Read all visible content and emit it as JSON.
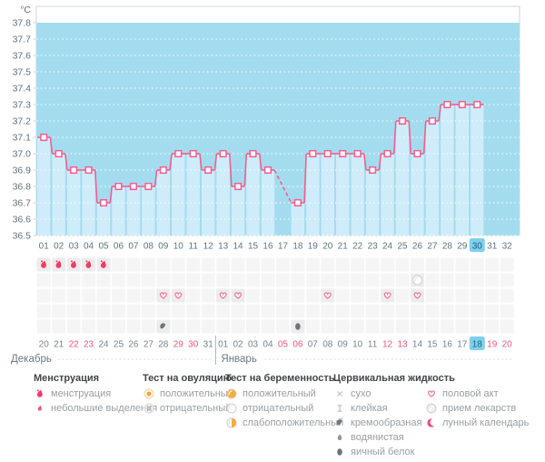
{
  "unit_label": "°C",
  "colors": {
    "plot_background": "#a4dcef",
    "day_bar_fill": "#cfecfa",
    "temperature_line": "#f1608e",
    "grid_dots": "#ffffff",
    "axis_text": "#62717b",
    "cycle_day_text": "#5b7584",
    "date_text": "#75838c",
    "weekend_date_text": "#f0557c",
    "today_highlight_bg": "#7fd0ee",
    "today_highlight_text": "#20617c",
    "month_text": "#6b7a83",
    "icon_cell_bg": "#ececec",
    "empty_cell_bg": "#f5f5f6",
    "menstruation_red": "#f23b6b",
    "test_orange": "#f3ab42",
    "dark_icon_gray": "#6d757b",
    "light_icon_gray": "#bcc2c6",
    "heart_pink": "#f0779c",
    "moon_pink": "#f2447e"
  },
  "chart_data": {
    "type": "line",
    "title": "",
    "xlabel": "",
    "ylabel": "°C",
    "ylim": [
      36.5,
      37.8
    ],
    "ytick_step": 0.1,
    "grid": "dotted horizontal white lines on blue field",
    "days": [
      "01",
      "02",
      "03",
      "04",
      "05",
      "06",
      "07",
      "08",
      "09",
      "10",
      "11",
      "12",
      "13",
      "14",
      "15",
      "16",
      "17",
      "18",
      "19",
      "20",
      "21",
      "22",
      "23",
      "24",
      "25",
      "26",
      "27",
      "28",
      "29",
      "30",
      "31",
      "32"
    ],
    "temperatures": [
      37.1,
      37.0,
      36.9,
      36.9,
      36.7,
      36.8,
      36.8,
      36.8,
      36.9,
      37.0,
      37.0,
      36.9,
      37.0,
      36.8,
      37.0,
      36.9,
      null,
      36.7,
      37.0,
      37.0,
      37.0,
      37.0,
      36.9,
      37.0,
      37.2,
      37.0,
      37.2,
      37.3,
      37.3,
      37.3,
      null,
      null
    ],
    "missing_day_note": "day 17 has no measurement - segment 16-18 drawn dashed",
    "highlighted_day": 30
  },
  "tracking_rows": {
    "menstruation_days": [
      1,
      2,
      3,
      4,
      5
    ],
    "pregnancy_test_negative_days": [
      26
    ],
    "intercourse_days": [
      9,
      10,
      13,
      14,
      20,
      24,
      26
    ],
    "cervical_fluid_entries": [
      {
        "day": 9,
        "type": "кремообразная"
      },
      {
        "day": 18,
        "type": "яичный белок"
      }
    ]
  },
  "calendar": {
    "months": [
      {
        "label": "Декабрь",
        "dates": [
          "20",
          "21",
          "22",
          "23",
          "24",
          "25",
          "26",
          "27",
          "28",
          "29",
          "30",
          "31"
        ],
        "weekend_dates": [
          "22",
          "23",
          "29",
          "30"
        ]
      },
      {
        "label": "Январь",
        "dates": [
          "01",
          "02",
          "03",
          "04",
          "05",
          "06",
          "07",
          "08",
          "09",
          "10",
          "11",
          "12",
          "13",
          "14",
          "15",
          "16",
          "17",
          "18",
          "19",
          "20"
        ],
        "weekend_dates": [
          "05",
          "06",
          "12",
          "13",
          "19",
          "20"
        ],
        "highlighted_date": "18"
      }
    ]
  },
  "legend": {
    "groups": [
      {
        "title": "Менструация",
        "items": [
          {
            "icon": "drop",
            "label": "менструация"
          },
          {
            "icon": "drop-small",
            "label": "небольшие выделения"
          }
        ]
      },
      {
        "title": "Тест на овуляцию",
        "items": [
          {
            "icon": "ovu-pos",
            "label": "положительный"
          },
          {
            "icon": "ovu-neg",
            "label": "отрицательный"
          }
        ]
      },
      {
        "title": "Тест на беременность",
        "items": [
          {
            "icon": "test-pos",
            "label": "положительный"
          },
          {
            "icon": "test-neg",
            "label": "отрицательный"
          },
          {
            "icon": "test-weak",
            "label": "слабоположительный"
          }
        ]
      },
      {
        "title": "Цервикальная жидкость",
        "items": [
          {
            "icon": "cross",
            "label": "сухо"
          },
          {
            "icon": "sticky",
            "label": "клейкая"
          },
          {
            "icon": "comma",
            "label": "кремообразная"
          },
          {
            "icon": "droplet",
            "label": "водянистая"
          },
          {
            "icon": "egg",
            "label": "яичный белок"
          }
        ]
      },
      {
        "title": "",
        "items": [
          {
            "icon": "heart",
            "label": "половой акт"
          },
          {
            "icon": "pill",
            "label": "прием лекарств"
          },
          {
            "icon": "moon",
            "label": "лунный календарь"
          }
        ]
      }
    ]
  }
}
